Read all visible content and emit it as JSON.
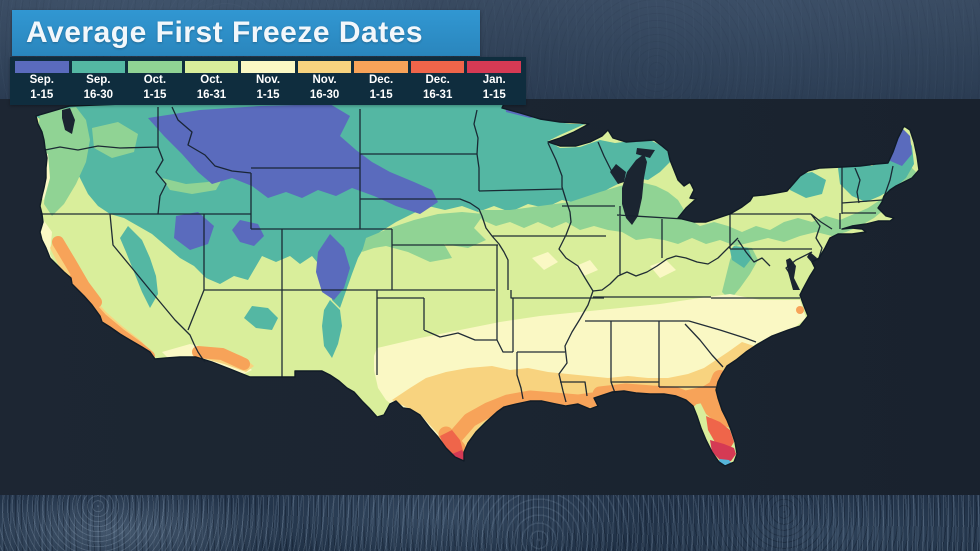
{
  "title": {
    "text": "Average First Freeze Dates"
  },
  "legend": {
    "background": "#0f2d3e",
    "items": [
      {
        "id": "sep1",
        "month": "Sep.",
        "range": "1-15",
        "color": "#5a6bbd"
      },
      {
        "id": "sep16",
        "month": "Sep.",
        "range": "16-30",
        "color": "#54b7a3"
      },
      {
        "id": "oct1",
        "month": "Oct.",
        "range": "1-15",
        "color": "#90d394"
      },
      {
        "id": "oct16",
        "month": "Oct.",
        "range": "16-31",
        "color": "#d9ee9b"
      },
      {
        "id": "nov1",
        "month": "Nov.",
        "range": "1-15",
        "color": "#faf8c4"
      },
      {
        "id": "nov16",
        "month": "Nov.",
        "range": "16-30",
        "color": "#f8d37f"
      },
      {
        "id": "dec1",
        "month": "Dec.",
        "range": "1-15",
        "color": "#f7a359"
      },
      {
        "id": "dec16",
        "month": "Dec.",
        "range": "16-31",
        "color": "#ef654a"
      },
      {
        "id": "jan1",
        "month": "Jan.",
        "range": "1-15",
        "color": "#d53a54"
      }
    ]
  },
  "map": {
    "name": "Contiguous United States first-freeze choropleth",
    "canvas_color": "#1b2531",
    "state_border_color": "#16222e",
    "no_freeze_color": "#55b4d9",
    "regions": [
      {
        "area": "Northern Rockies & high plains (MT, ID, WY, western Dakotas)",
        "first_freeze": "Sep. 1-15"
      },
      {
        "area": "Colorado Rockies, Uinta/Wasatch UT, NE Nevada ranges, far northern MN/ND, interior northern Maine",
        "first_freeze": "Sep. 1-15"
      },
      {
        "area": "Mountain West basins, Cascades, Sierra Nevada, Dakotas, MN, WI, northern MI, Adirondacks, northern New England, southern Rockies into N NM & AZ highlands",
        "first_freeze": "Sep. 16-30"
      },
      {
        "area": "Pacific NW interior, central Plains fringe, upper Midwest belt, lower Great Lakes fringe, Appalachians, inland New England",
        "first_freeze": "Oct. 1-15"
      },
      {
        "area": "Central belt: KS-MO-Ohio Valley, Mid-Atlantic, NM/AZ plateaus, West Texas, interior Northwest lowlands",
        "first_freeze": "Oct. 16-31"
      },
      {
        "area": "Southern Plains, mid-South (AR/TN), Carolinas piedmont, coastal VA/NC, OR & N-CA coast",
        "first_freeze": "Nov. 1-15"
      },
      {
        "area": "Central Texas, Deep South interior (LA-MS-AL-GA-SC), GA/SC coast, CA coast & valleys, southern AZ",
        "first_freeze": "Nov. 16-30"
      },
      {
        "area": "Gulf Coast strip (TX-LA-MS-AL), north Florida, CA central valley core, SoCal coast, Phoenix/Yuma deserts",
        "first_freeze": "Dec. 1-15"
      },
      {
        "area": "Deep South Texas, central Florida, San Diego coastal strip",
        "first_freeze": "Dec. 16-31"
      },
      {
        "area": "Lower Rio Grande Valley (TX tip), South Florida",
        "first_freeze": "Jan. 1-15"
      },
      {
        "area": "Far southern tip of Florida",
        "first_freeze": "rare/none (light blue)"
      }
    ]
  }
}
